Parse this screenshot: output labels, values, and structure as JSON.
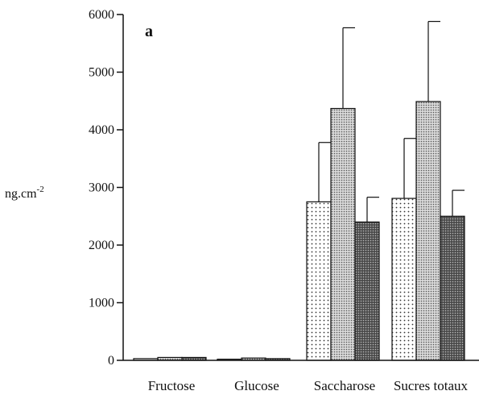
{
  "chart_data": {
    "type": "bar",
    "panel_label": "a",
    "ylabel": "ng.cm",
    "ylabel_exponent": "-2",
    "ylim": [
      0,
      6000
    ],
    "yticks": [
      0,
      1000,
      2000,
      3000,
      4000,
      5000,
      6000
    ],
    "categories": [
      "Fructose",
      "Glucose",
      "Saccharose",
      "Sucres totaux"
    ],
    "grid": false,
    "series": [
      {
        "pattern": "light-dots",
        "values": [
          30,
          20,
          2750,
          2810
        ],
        "errors": [
          0,
          0,
          1030,
          1040
        ]
      },
      {
        "pattern": "medium-dots",
        "values": [
          50,
          40,
          4370,
          4490
        ],
        "errors": [
          0,
          0,
          1400,
          1390
        ]
      },
      {
        "pattern": "dark-dots",
        "values": [
          50,
          30,
          2400,
          2500
        ],
        "errors": [
          0,
          0,
          430,
          450
        ]
      }
    ]
  }
}
